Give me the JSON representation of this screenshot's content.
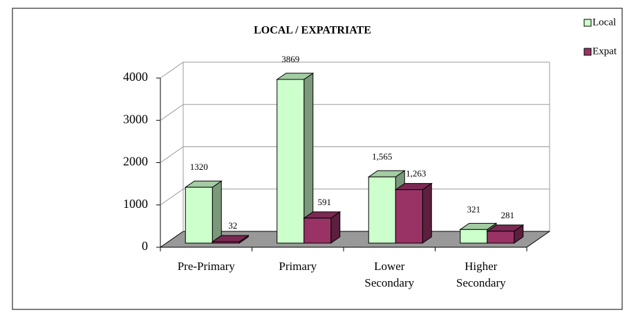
{
  "chart_data": {
    "type": "bar3d",
    "title": "LOCAL / EXPATRIATE",
    "categories": [
      "Pre-Primary",
      "Primary",
      "Lower Secondary",
      "Higher Secondary"
    ],
    "series": [
      {
        "name": "Local",
        "color": "#ccffcc",
        "values": [
          1320,
          3869,
          1565,
          321
        ],
        "value_labels": [
          "1320",
          "3869",
          "1,565",
          "321"
        ]
      },
      {
        "name": "Expat",
        "color": "#993366",
        "values": [
          32,
          591,
          1263,
          281
        ],
        "value_labels": [
          "32",
          "591",
          "1,263",
          "281"
        ]
      }
    ],
    "ylim": [
      0,
      4000
    ],
    "yticks": [
      0,
      1000,
      2000,
      3000,
      4000
    ],
    "grid": true,
    "legend": "top-right"
  }
}
